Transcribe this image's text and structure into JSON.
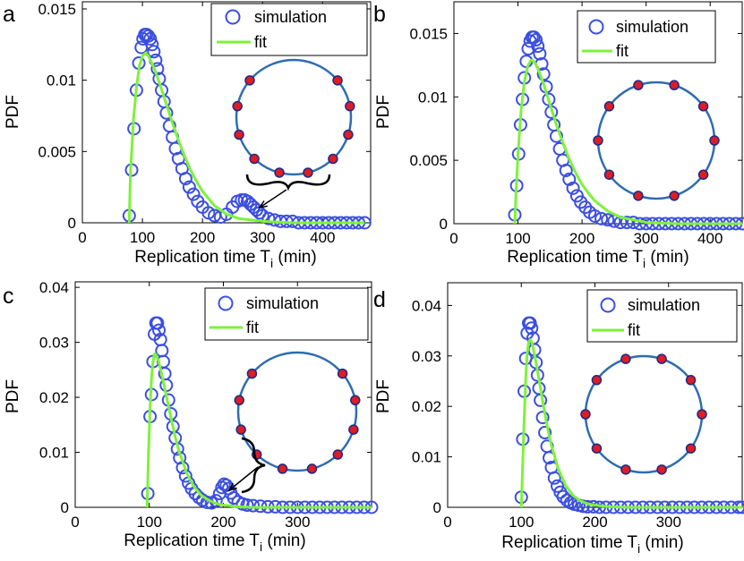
{
  "figure": {
    "title": ""
  },
  "chart_data": [
    {
      "type": "scatter",
      "panel": "a",
      "xlabel": "Replication time T",
      "xlabel_sub": "i",
      "xlabel_unit": "(min)",
      "ylabel": "PDF",
      "xlim": [
        0,
        480
      ],
      "ylim": [
        0,
        0.0155
      ],
      "xticks": [
        0,
        100,
        200,
        300,
        400
      ],
      "yticks": [
        0,
        0.005,
        0.01,
        0.015
      ],
      "ytick_labels": [
        "0",
        "0.005",
        "0.01",
        "0.015"
      ],
      "legend": [
        "simulation",
        "fit"
      ],
      "legend_position": "top-right",
      "series": [
        {
          "name": "simulation",
          "kind": "markers",
          "x": [
            78,
            82,
            86,
            90,
            94,
            98,
            101,
            104,
            107,
            110,
            113,
            116,
            119,
            122,
            125,
            128,
            132,
            136,
            140,
            145,
            150,
            155,
            160,
            166,
            172,
            178,
            185,
            192,
            200,
            210,
            220,
            230,
            240,
            250,
            258,
            265,
            270,
            275,
            280,
            285,
            290,
            295,
            300,
            310,
            320,
            330,
            340,
            350,
            360,
            370,
            380,
            390,
            400,
            410,
            420,
            430,
            440,
            450,
            460,
            470
          ],
          "y": [
            0.0005,
            0.0037,
            0.0066,
            0.0093,
            0.0112,
            0.0123,
            0.0129,
            0.0132,
            0.0132,
            0.0131,
            0.0129,
            0.0125,
            0.012,
            0.0114,
            0.0108,
            0.0101,
            0.0093,
            0.0085,
            0.0077,
            0.0068,
            0.006,
            0.0052,
            0.0045,
            0.0038,
            0.0031,
            0.0025,
            0.002,
            0.0015,
            0.0011,
            0.0007,
            0.0005,
            0.0004,
            0.0006,
            0.0011,
            0.0015,
            0.0016,
            0.0016,
            0.0015,
            0.0013,
            0.0011,
            0.0009,
            0.0007,
            0.0005,
            0.0003,
            0.0002,
            0.0001,
            0.0001,
            0.0001,
            0.0,
            0.0,
            0.0,
            0.0,
            0.0,
            0.0,
            0.0,
            0.0,
            0.0,
            0.0,
            0.0,
            0.0
          ]
        },
        {
          "name": "fit",
          "kind": "line",
          "x": [
            78,
            80,
            85,
            90,
            95,
            100,
            105,
            110,
            120,
            130,
            140,
            150,
            160,
            170,
            180,
            190,
            200,
            220,
            240,
            260,
            280,
            300,
            350,
            400,
            450,
            470
          ],
          "y": [
            0.0,
            0.0035,
            0.0072,
            0.0095,
            0.011,
            0.0117,
            0.0119,
            0.0117,
            0.0108,
            0.0096,
            0.0083,
            0.007,
            0.0058,
            0.0047,
            0.0037,
            0.0029,
            0.0022,
            0.0012,
            0.0006,
            0.0003,
            0.0002,
            0.0001,
            0.0,
            0.0,
            0.0,
            0.0
          ]
        }
      ],
      "inset": {
        "n_origins": 10,
        "gap": true
      }
    },
    {
      "type": "scatter",
      "panel": "b",
      "xlabel": "Replication time T",
      "xlabel_sub": "i",
      "xlabel_unit": "(min)",
      "ylabel": "PDF",
      "xlim": [
        0,
        450
      ],
      "ylim": [
        0,
        0.0175
      ],
      "xticks": [
        0,
        100,
        200,
        300,
        400
      ],
      "yticks": [
        0,
        0.005,
        0.01,
        0.015
      ],
      "ytick_labels": [
        "0",
        "0.005",
        "0.01",
        "0.015"
      ],
      "legend": [
        "simulation",
        "fit"
      ],
      "legend_position": "top-right",
      "series": [
        {
          "name": "simulation",
          "kind": "markers",
          "x": [
            95,
            98,
            101,
            104,
            107,
            110,
            113,
            116,
            119,
            122,
            125,
            128,
            131,
            134,
            137,
            140,
            144,
            148,
            152,
            156,
            160,
            165,
            170,
            175,
            180,
            186,
            192,
            198,
            205,
            212,
            220,
            230,
            240,
            250,
            260,
            270,
            280,
            290,
            300,
            310,
            320,
            330,
            340,
            350,
            360,
            370,
            380,
            390,
            400,
            410,
            420,
            430,
            440,
            450
          ],
          "y": [
            0.0007,
            0.003,
            0.0055,
            0.0078,
            0.0098,
            0.0115,
            0.0128,
            0.0138,
            0.0144,
            0.0147,
            0.0147,
            0.0145,
            0.014,
            0.0134,
            0.0126,
            0.0118,
            0.0108,
            0.0098,
            0.0088,
            0.0078,
            0.0069,
            0.0059,
            0.005,
            0.0042,
            0.0035,
            0.0028,
            0.0022,
            0.0017,
            0.0013,
            0.0009,
            0.0006,
            0.0004,
            0.0003,
            0.0002,
            0.0001,
            0.0001,
            0.0001,
            0.0,
            0.0,
            0.0,
            0.0,
            0.0,
            0.0,
            0.0,
            0.0,
            0.0,
            0.0,
            0.0,
            0.0,
            0.0,
            0.0,
            0.0,
            0.0,
            0.0
          ]
        },
        {
          "name": "fit",
          "kind": "line",
          "x": [
            95,
            97,
            100,
            105,
            110,
            115,
            120,
            125,
            130,
            140,
            150,
            160,
            170,
            180,
            190,
            200,
            210,
            220,
            240,
            260,
            280,
            300,
            350,
            400,
            450
          ],
          "y": [
            0.0,
            0.0025,
            0.0055,
            0.009,
            0.0112,
            0.0124,
            0.0129,
            0.0128,
            0.0124,
            0.011,
            0.0094,
            0.0078,
            0.0064,
            0.0051,
            0.004,
            0.0031,
            0.0024,
            0.0018,
            0.001,
            0.0005,
            0.0003,
            0.0001,
            0.0,
            0.0,
            0.0
          ]
        }
      ],
      "inset": {
        "n_origins": 10,
        "gap": false
      }
    },
    {
      "type": "scatter",
      "panel": "c",
      "xlabel": "Replication time T",
      "xlabel_sub": "i",
      "xlabel_unit": "(min)",
      "ylabel": "PDF",
      "xlim": [
        0,
        400
      ],
      "ylim": [
        0,
        0.041
      ],
      "xticks": [
        0,
        100,
        200,
        300
      ],
      "yticks": [
        0,
        0.01,
        0.02,
        0.03,
        0.04
      ],
      "ytick_labels": [
        "0",
        "0.01",
        "0.02",
        "0.03",
        "0.04"
      ],
      "legend": [
        "simulation",
        "fit"
      ],
      "legend_position": "top-right",
      "series": [
        {
          "name": "simulation",
          "kind": "markers",
          "x": [
            98,
            101,
            103,
            105,
            107,
            109,
            111,
            113,
            115,
            117,
            119,
            121,
            123,
            126,
            129,
            132,
            135,
            138,
            141,
            145,
            149,
            153,
            157,
            162,
            167,
            172,
            178,
            184,
            190,
            195,
            198,
            201,
            204,
            207,
            210,
            214,
            220,
            226,
            232,
            240,
            250,
            260,
            270,
            280,
            290,
            300,
            310,
            320,
            330,
            340,
            350,
            360,
            370,
            380,
            390,
            400
          ],
          "y": [
            0.0025,
            0.0165,
            0.0205,
            0.0265,
            0.0315,
            0.0335,
            0.0335,
            0.0322,
            0.0305,
            0.0285,
            0.0265,
            0.0243,
            0.0222,
            0.0195,
            0.017,
            0.0147,
            0.0126,
            0.0106,
            0.009,
            0.0072,
            0.0057,
            0.0044,
            0.0034,
            0.0025,
            0.0018,
            0.0013,
            0.0009,
            0.0008,
            0.0012,
            0.0025,
            0.0036,
            0.0042,
            0.004,
            0.0034,
            0.0026,
            0.0017,
            0.001,
            0.0006,
            0.0004,
            0.0003,
            0.0002,
            0.0001,
            0.0001,
            0.0,
            0.0,
            0.0,
            0.0,
            0.0,
            0.0,
            0.0,
            0.0,
            0.0,
            0.0,
            0.0,
            0.0,
            0.0
          ]
        },
        {
          "name": "fit",
          "kind": "line",
          "x": [
            97,
            99,
            101,
            103,
            105,
            107,
            109,
            112,
            115,
            120,
            125,
            130,
            135,
            140,
            150,
            160,
            170,
            180,
            190,
            200,
            220,
            240,
            260,
            300,
            350,
            400
          ],
          "y": [
            0.0,
            0.01,
            0.018,
            0.0235,
            0.0265,
            0.0279,
            0.0278,
            0.0268,
            0.0252,
            0.0222,
            0.019,
            0.0158,
            0.0128,
            0.0103,
            0.0064,
            0.0038,
            0.0022,
            0.0013,
            0.0007,
            0.0004,
            0.0001,
            0.0,
            0.0,
            0.0,
            0.0,
            0.0
          ]
        }
      ],
      "inset": {
        "n_origins": 10,
        "gap": true
      }
    },
    {
      "type": "scatter",
      "panel": "d",
      "xlabel": "Replication time T",
      "xlabel_sub": "i",
      "xlabel_unit": "(min)",
      "ylabel": "PDF",
      "xlim": [
        0,
        400
      ],
      "ylim": [
        0,
        0.0445
      ],
      "xticks": [
        0,
        100,
        200,
        300
      ],
      "yticks": [
        0,
        0.01,
        0.02,
        0.03,
        0.04
      ],
      "ytick_labels": [
        "0",
        "0.01",
        "0.02",
        "0.03",
        "0.04"
      ],
      "legend": [
        "simulation",
        "fit"
      ],
      "legend_position": "top-right",
      "series": [
        {
          "name": "simulation",
          "kind": "markers",
          "x": [
            100,
            102,
            104,
            106,
            108,
            110,
            112,
            114,
            116,
            118,
            120,
            122,
            124,
            126,
            129,
            132,
            135,
            138,
            141,
            145,
            149,
            153,
            157,
            162,
            167,
            172,
            178,
            184,
            190,
            198,
            206,
            215,
            225,
            235,
            245,
            255,
            265,
            275,
            285,
            295,
            305,
            315,
            325,
            335,
            345,
            355,
            365,
            375,
            385,
            395,
            400
          ],
          "y": [
            0.002,
            0.0135,
            0.023,
            0.0295,
            0.0345,
            0.0365,
            0.0365,
            0.0355,
            0.0335,
            0.0312,
            0.0287,
            0.0262,
            0.0236,
            0.0212,
            0.0178,
            0.0148,
            0.0121,
            0.0098,
            0.0079,
            0.0058,
            0.0042,
            0.003,
            0.0021,
            0.0014,
            0.0009,
            0.0006,
            0.0004,
            0.0002,
            0.0001,
            0.0001,
            0.0,
            0.0,
            0.0,
            0.0,
            0.0,
            0.0,
            0.0,
            0.0,
            0.0,
            0.0,
            0.0,
            0.0,
            0.0,
            0.0,
            0.0,
            0.0,
            0.0,
            0.0,
            0.0,
            0.0,
            0.0
          ]
        },
        {
          "name": "fit",
          "kind": "line",
          "x": [
            100,
            102,
            104,
            106,
            108,
            110,
            112,
            114,
            116,
            120,
            125,
            130,
            135,
            140,
            150,
            160,
            170,
            180,
            190,
            200,
            220,
            250,
            300,
            350,
            400
          ],
          "y": [
            0.0,
            0.009,
            0.0175,
            0.0255,
            0.0305,
            0.0328,
            0.0332,
            0.0328,
            0.0317,
            0.0287,
            0.0245,
            0.0202,
            0.0162,
            0.0128,
            0.0077,
            0.0044,
            0.0024,
            0.0013,
            0.0007,
            0.0004,
            0.0001,
            0.0,
            0.0,
            0.0,
            0.0
          ]
        }
      ],
      "inset": {
        "n_origins": 10,
        "gap": false
      }
    }
  ],
  "colors": {
    "simulation": "#3b4fe0",
    "fit": "#7ef23a",
    "ring": "#2f6db0",
    "origin_fill": "#dd1c24",
    "origin_edge": "#1a2a8a"
  }
}
